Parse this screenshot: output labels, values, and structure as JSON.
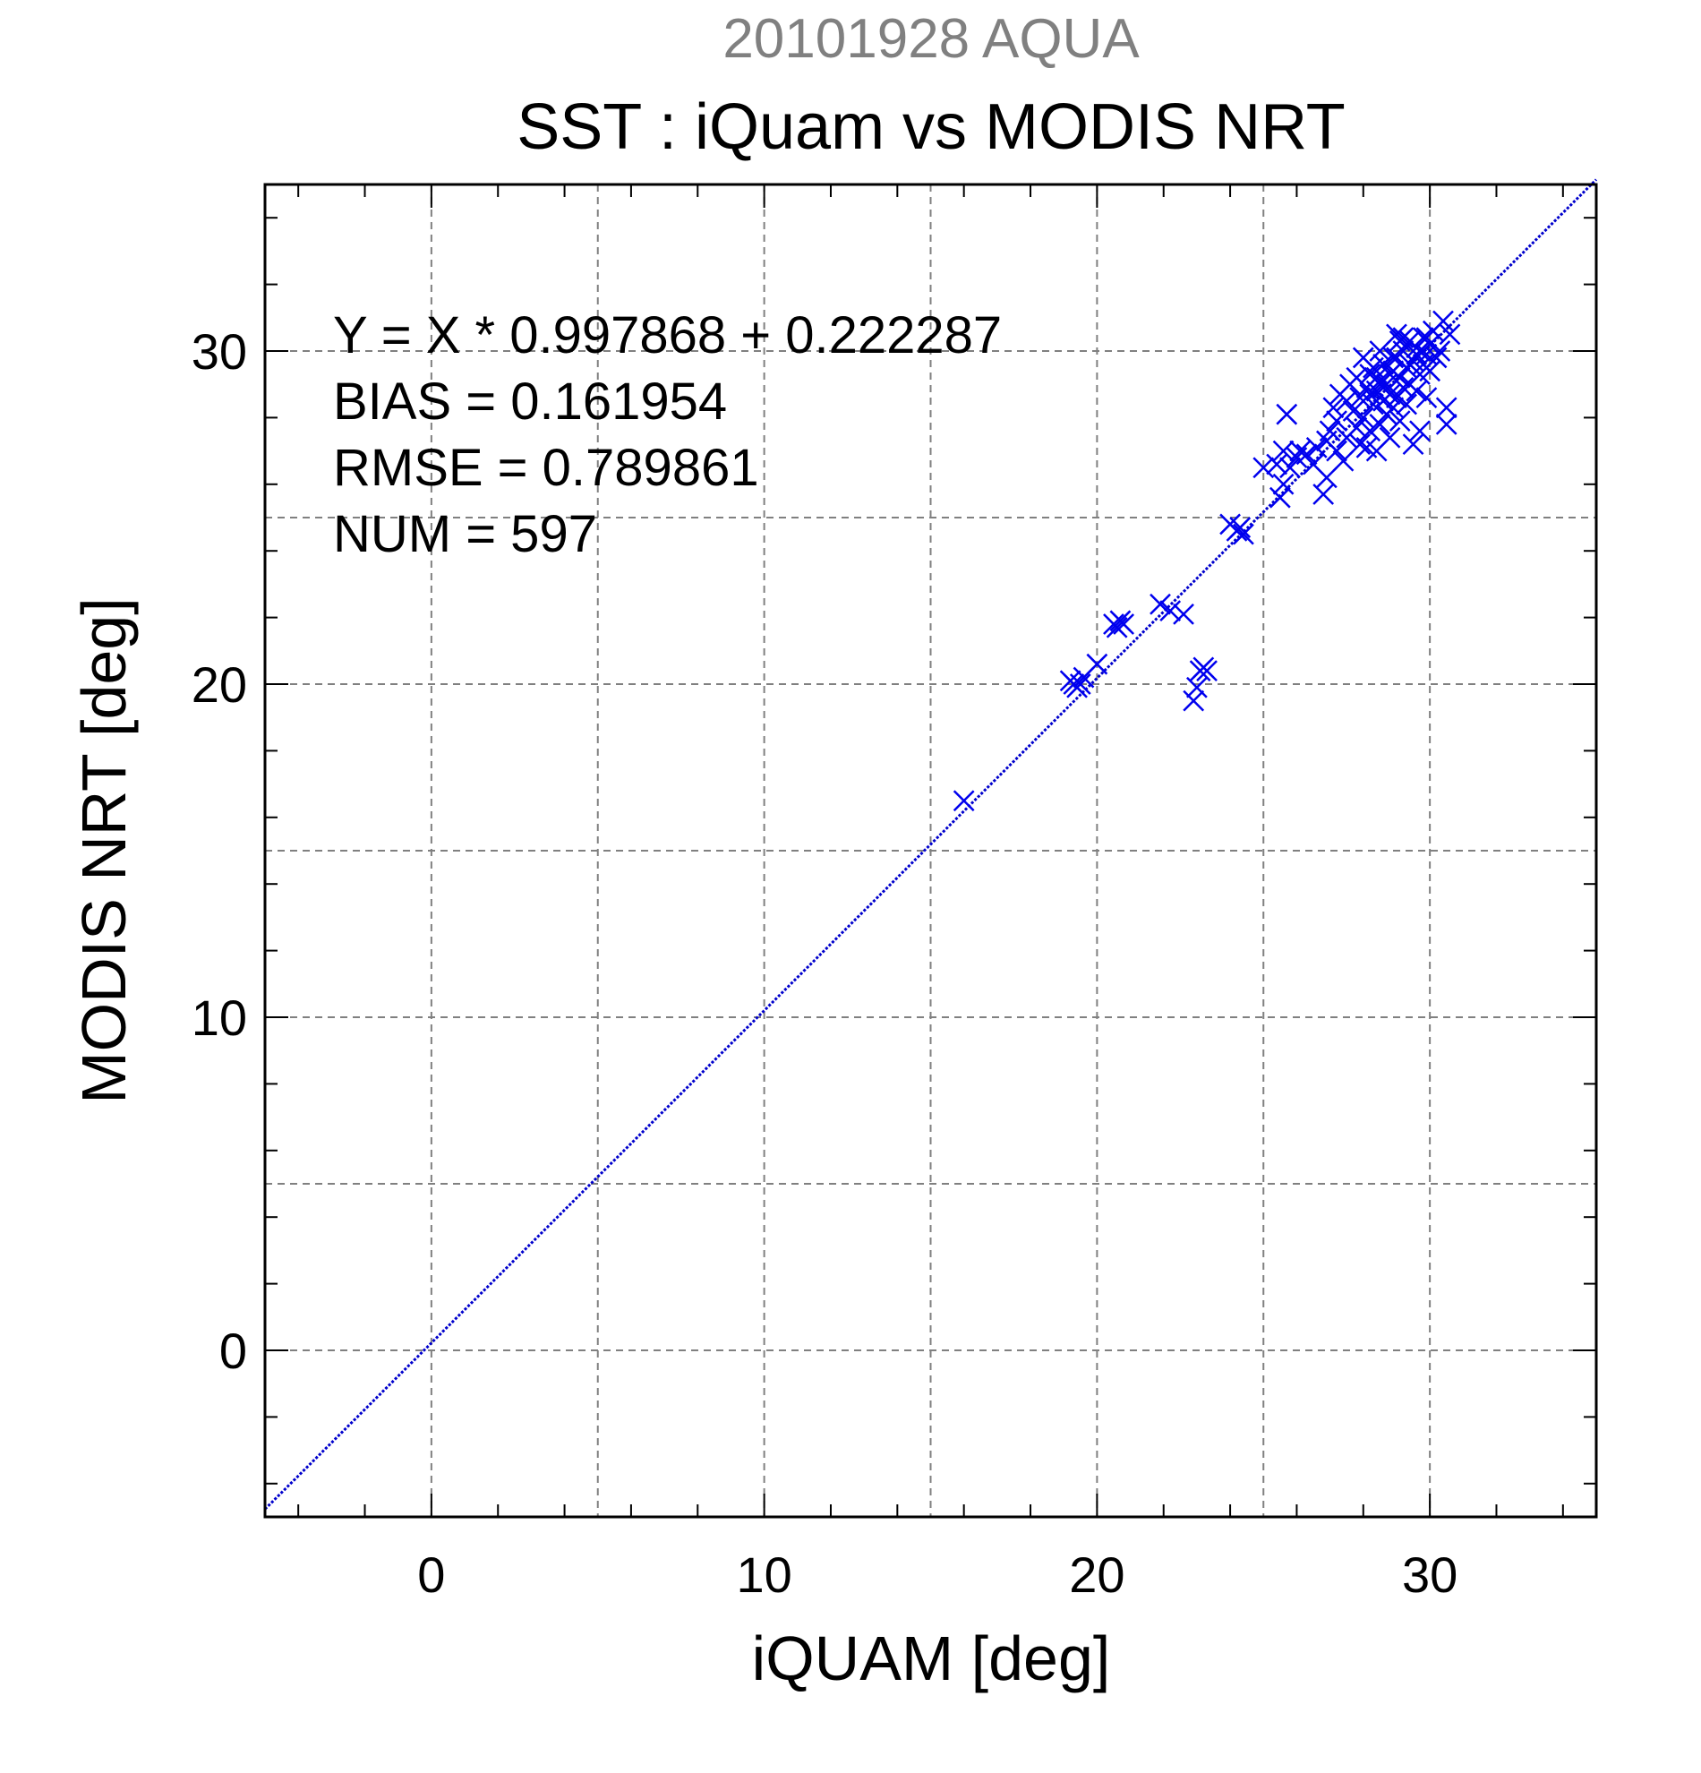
{
  "colors": {
    "point": "#0000ee",
    "fit_line": "#0000cc",
    "title_secondary": "#808080",
    "grid": "#808080",
    "axis": "#000000",
    "background": "#ffffff"
  },
  "chart_data": {
    "type": "scatter",
    "subtitle": "20101928 AQUA",
    "title": "SST : iQuam vs MODIS NRT",
    "xlabel": "iQUAM [deg]",
    "ylabel": "MODIS NRT [deg]",
    "xlim": [
      -5,
      35
    ],
    "ylim": [
      -5,
      35
    ],
    "xticks": [
      0,
      10,
      20,
      30
    ],
    "yticks": [
      0,
      10,
      20,
      30
    ],
    "grid": true,
    "marker": "x",
    "stats": [
      "Y = X * 0.997868 + 0.222287",
      "BIAS = 0.161954",
      "RMSE = 0.789861",
      "NUM = 597"
    ],
    "fit": {
      "slope": 0.997868,
      "intercept": 0.222287
    },
    "points": [
      [
        16.0,
        16.5
      ],
      [
        19.2,
        20.1
      ],
      [
        19.3,
        20.0
      ],
      [
        19.4,
        19.9
      ],
      [
        19.5,
        20.0
      ],
      [
        19.6,
        20.2
      ],
      [
        20.0,
        20.6
      ],
      [
        20.5,
        21.8
      ],
      [
        20.6,
        21.7
      ],
      [
        20.7,
        21.9
      ],
      [
        20.8,
        21.8
      ],
      [
        21.9,
        22.4
      ],
      [
        22.2,
        22.2
      ],
      [
        22.6,
        22.1
      ],
      [
        22.9,
        19.5
      ],
      [
        23.0,
        19.9
      ],
      [
        23.1,
        20.4
      ],
      [
        23.2,
        20.5
      ],
      [
        23.3,
        20.4
      ],
      [
        24.0,
        24.8
      ],
      [
        24.2,
        24.6
      ],
      [
        24.3,
        24.7
      ],
      [
        24.4,
        24.5
      ],
      [
        25.0,
        26.5
      ],
      [
        25.4,
        26.6
      ],
      [
        25.5,
        25.6
      ],
      [
        25.6,
        26.0
      ],
      [
        25.6,
        27.0
      ],
      [
        25.7,
        28.1
      ],
      [
        25.8,
        26.5
      ],
      [
        26.0,
        26.8
      ],
      [
        26.1,
        27.0
      ],
      [
        26.3,
        26.9
      ],
      [
        26.5,
        26.6
      ],
      [
        26.6,
        27.1
      ],
      [
        26.8,
        25.7
      ],
      [
        26.9,
        26.2
      ],
      [
        26.9,
        27.3
      ],
      [
        27.0,
        27.6
      ],
      [
        27.1,
        28.3
      ],
      [
        27.2,
        27.0
      ],
      [
        27.2,
        27.9
      ],
      [
        27.3,
        28.7
      ],
      [
        27.4,
        26.7
      ],
      [
        27.5,
        27.4
      ],
      [
        27.5,
        28.5
      ],
      [
        27.6,
        29.0
      ],
      [
        27.7,
        28.2
      ],
      [
        27.8,
        27.7
      ],
      [
        27.8,
        29.2
      ],
      [
        27.9,
        28.6
      ],
      [
        27.9,
        27.2
      ],
      [
        28.0,
        29.8
      ],
      [
        28.0,
        28.0
      ],
      [
        28.1,
        27.1
      ],
      [
        28.1,
        28.9
      ],
      [
        28.2,
        29.3
      ],
      [
        28.2,
        27.6
      ],
      [
        28.3,
        28.4
      ],
      [
        28.3,
        29.5
      ],
      [
        28.4,
        27.0
      ],
      [
        28.4,
        28.8
      ],
      [
        28.5,
        29.1
      ],
      [
        28.5,
        27.8
      ],
      [
        28.6,
        28.5
      ],
      [
        28.6,
        29.6
      ],
      [
        28.7,
        28.1
      ],
      [
        28.7,
        29.0
      ],
      [
        28.8,
        27.4
      ],
      [
        28.8,
        28.7
      ],
      [
        28.9,
        29.4
      ],
      [
        28.9,
        28.3
      ],
      [
        29.0,
        29.8
      ],
      [
        29.0,
        28.6
      ],
      [
        29.1,
        27.9
      ],
      [
        29.1,
        29.2
      ],
      [
        29.2,
        30.0
      ],
      [
        29.2,
        28.9
      ],
      [
        29.3,
        29.5
      ],
      [
        29.3,
        28.4
      ],
      [
        29.4,
        30.3
      ],
      [
        29.4,
        29.0
      ],
      [
        29.5,
        27.2
      ],
      [
        29.5,
        29.7
      ],
      [
        29.6,
        28.8
      ],
      [
        29.6,
        30.1
      ],
      [
        29.7,
        29.3
      ],
      [
        29.7,
        27.6
      ],
      [
        29.8,
        30.4
      ],
      [
        29.8,
        29.6
      ],
      [
        29.9,
        29.9
      ],
      [
        29.9,
        28.6
      ],
      [
        30.0,
        30.2
      ],
      [
        30.0,
        29.4
      ],
      [
        30.1,
        30.6
      ],
      [
        30.2,
        29.8
      ],
      [
        30.3,
        30.0
      ],
      [
        30.4,
        30.9
      ],
      [
        30.5,
        28.3
      ],
      [
        30.5,
        27.8
      ],
      [
        30.6,
        30.5
      ],
      [
        28.5,
        30.0
      ],
      [
        29.0,
        30.5
      ],
      [
        29.2,
        30.4
      ],
      [
        28.9,
        29.8
      ],
      [
        29.6,
        29.9
      ],
      [
        29.1,
        30.3
      ],
      [
        28.6,
        28.9
      ],
      [
        28.8,
        29.3
      ],
      [
        29.4,
        29.6
      ],
      [
        29.7,
        30.0
      ],
      [
        28.4,
        29.2
      ],
      [
        28.2,
        28.7
      ],
      [
        29.9,
        30.4
      ]
    ]
  }
}
